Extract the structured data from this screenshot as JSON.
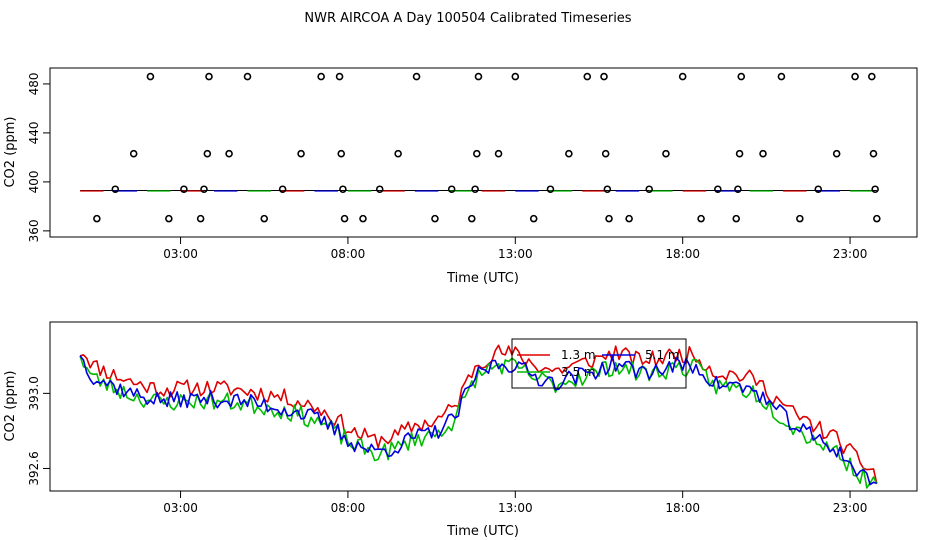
{
  "title": "NWR AIRCOA A  Day 100504  Calibrated Timeseries",
  "colors": {
    "axis": "#000000",
    "series_1": "#dd0000",
    "series_2": "#00bb00",
    "series_3": "#0000dd"
  },
  "chart_data": [
    {
      "type": "scatter",
      "title": "",
      "xlabel": "Time (UTC)",
      "ylabel": "CO2 (ppm)",
      "xlim": [
        -0.9,
        25.0
      ],
      "ylim": [
        355,
        493
      ],
      "xticks": [
        3,
        8,
        13,
        18,
        23
      ],
      "xtick_labels": [
        "03:00",
        "08:00",
        "13:00",
        "18:00",
        "23:00"
      ],
      "yticks": [
        360,
        400,
        440,
        480
      ],
      "ytick_labels": [
        "360",
        "400",
        "440",
        "480"
      ],
      "points": [
        {
          "x": 0.5,
          "y": 370
        },
        {
          "x": 1.05,
          "y": 394
        },
        {
          "x": 1.6,
          "y": 423
        },
        {
          "x": 2.1,
          "y": 486
        },
        {
          "x": 2.65,
          "y": 370
        },
        {
          "x": 3.1,
          "y": 394
        },
        {
          "x": 3.6,
          "y": 370
        },
        {
          "x": 3.7,
          "y": 394
        },
        {
          "x": 3.8,
          "y": 423
        },
        {
          "x": 3.85,
          "y": 486
        },
        {
          "x": 4.45,
          "y": 423
        },
        {
          "x": 5.0,
          "y": 486
        },
        {
          "x": 5.5,
          "y": 370
        },
        {
          "x": 6.05,
          "y": 394
        },
        {
          "x": 6.6,
          "y": 423
        },
        {
          "x": 7.2,
          "y": 486
        },
        {
          "x": 7.75,
          "y": 486
        },
        {
          "x": 7.8,
          "y": 423
        },
        {
          "x": 7.85,
          "y": 394
        },
        {
          "x": 7.9,
          "y": 370
        },
        {
          "x": 8.45,
          "y": 370
        },
        {
          "x": 8.95,
          "y": 394
        },
        {
          "x": 9.5,
          "y": 423
        },
        {
          "x": 10.05,
          "y": 486
        },
        {
          "x": 10.6,
          "y": 370
        },
        {
          "x": 11.1,
          "y": 394
        },
        {
          "x": 11.7,
          "y": 370
        },
        {
          "x": 11.8,
          "y": 394
        },
        {
          "x": 11.85,
          "y": 423
        },
        {
          "x": 11.9,
          "y": 486
        },
        {
          "x": 12.5,
          "y": 423
        },
        {
          "x": 13.0,
          "y": 486
        },
        {
          "x": 13.55,
          "y": 370
        },
        {
          "x": 14.05,
          "y": 394
        },
        {
          "x": 14.6,
          "y": 423
        },
        {
          "x": 15.15,
          "y": 486
        },
        {
          "x": 15.65,
          "y": 486
        },
        {
          "x": 15.7,
          "y": 423
        },
        {
          "x": 15.75,
          "y": 394
        },
        {
          "x": 15.8,
          "y": 370
        },
        {
          "x": 16.4,
          "y": 370
        },
        {
          "x": 17.0,
          "y": 394
        },
        {
          "x": 17.5,
          "y": 423
        },
        {
          "x": 18.0,
          "y": 486
        },
        {
          "x": 18.55,
          "y": 370
        },
        {
          "x": 19.05,
          "y": 394
        },
        {
          "x": 19.6,
          "y": 370
        },
        {
          "x": 19.65,
          "y": 394
        },
        {
          "x": 19.7,
          "y": 423
        },
        {
          "x": 19.75,
          "y": 486
        },
        {
          "x": 20.4,
          "y": 423
        },
        {
          "x": 20.95,
          "y": 486
        },
        {
          "x": 21.5,
          "y": 370
        },
        {
          "x": 22.05,
          "y": 394
        },
        {
          "x": 22.6,
          "y": 423
        },
        {
          "x": 23.15,
          "y": 486
        },
        {
          "x": 23.65,
          "y": 486
        },
        {
          "x": 23.7,
          "y": 423
        },
        {
          "x": 23.75,
          "y": 394
        },
        {
          "x": 23.8,
          "y": 370
        }
      ],
      "baseline_y": 393,
      "baseline_x": [
        0.0,
        23.8
      ]
    },
    {
      "type": "line",
      "title": "",
      "xlabel": "Time (UTC)",
      "ylabel": "CO2 (ppm)",
      "xlim": [
        -0.9,
        25.0
      ],
      "ylim": [
        392.48,
        393.38
      ],
      "xticks": [
        3,
        8,
        13,
        18,
        23
      ],
      "xtick_labels": [
        "03:00",
        "08:00",
        "13:00",
        "18:00",
        "23:00"
      ],
      "yticks": [
        392.6,
        393.0
      ],
      "ytick_labels": [
        "392.6",
        "393.0"
      ],
      "legend_labels": [
        "1.3 m",
        "3.5 m",
        "5.1 m"
      ],
      "legend_position": "top-center",
      "anchors": {
        "hours": [
          0.0,
          0.4,
          1.0,
          1.7,
          2.5,
          3.3,
          4.0,
          4.7,
          5.5,
          6.3,
          7.0,
          7.6,
          8.2,
          8.8,
          9.4,
          10.0,
          10.6,
          11.2,
          11.8,
          12.4,
          13.0,
          13.6,
          14.2,
          14.8,
          15.4,
          16.0,
          16.6,
          17.2,
          17.8,
          18.4,
          19.0,
          19.6,
          20.2,
          20.8,
          21.4,
          22.0,
          22.6,
          23.2,
          23.8
        ],
        "base": [
          393.2,
          393.1,
          393.05,
          393.0,
          392.97,
          392.98,
          392.98,
          392.97,
          392.95,
          392.92,
          392.88,
          392.82,
          392.74,
          392.7,
          392.72,
          392.78,
          392.8,
          392.88,
          393.1,
          393.17,
          393.16,
          393.1,
          393.07,
          393.1,
          393.13,
          393.17,
          393.13,
          393.13,
          393.16,
          393.15,
          393.06,
          393.05,
          393.02,
          392.92,
          392.83,
          392.77,
          392.71,
          392.6,
          392.52
        ]
      },
      "series": [
        {
          "name": "1.3 m",
          "offset": 0.05,
          "noise_ppm": 0.045,
          "seed": 11
        },
        {
          "name": "3.5 m",
          "offset": -0.02,
          "noise_ppm": 0.05,
          "seed": 23
        },
        {
          "name": "5.1 m",
          "offset": -0.01,
          "noise_ppm": 0.045,
          "seed": 37
        }
      ]
    }
  ]
}
